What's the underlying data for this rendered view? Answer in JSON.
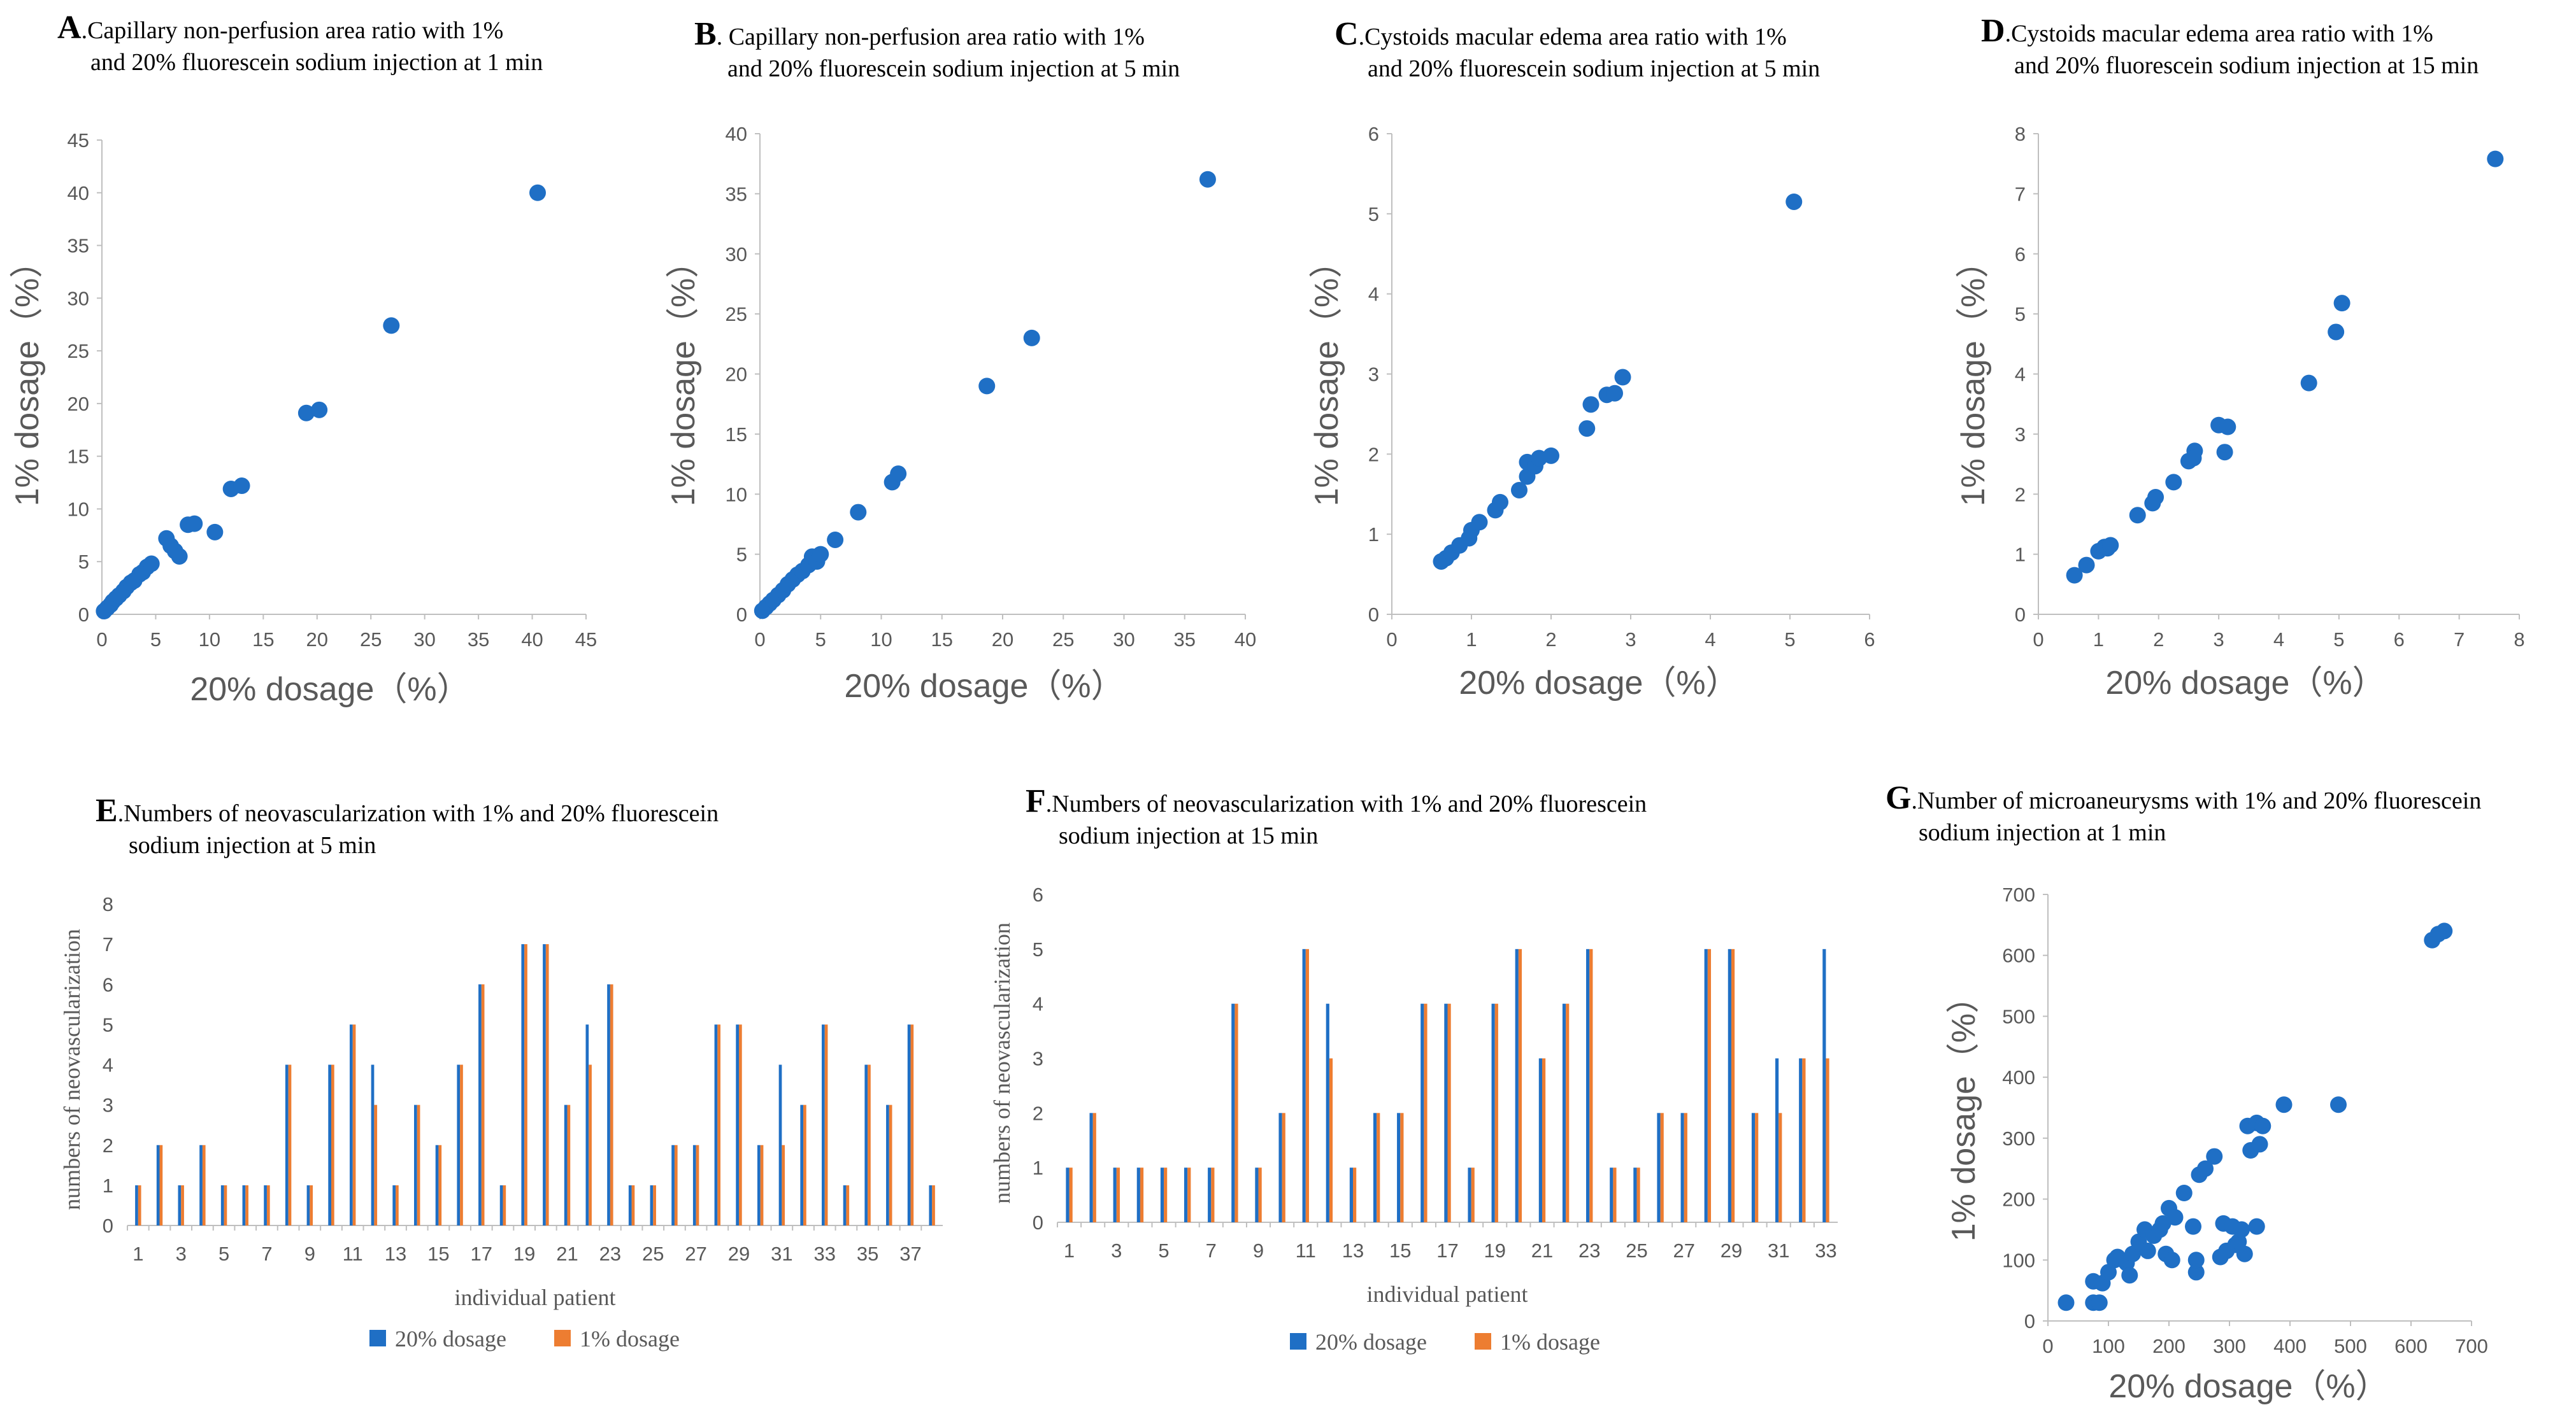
{
  "colors": {
    "blue": "#1f6fc5",
    "orange": "#ed7d31",
    "axis": "#bfbfbf",
    "tick_text": "#595959"
  },
  "chart_data": [
    {
      "id": "A",
      "type": "scatter",
      "letter": "A",
      "title_line1": ".Capillary non-perfusion area ratio with 1%",
      "title_line2": "and 20% fluorescein sodium injection at 1 min",
      "xlabel": "20% dosage（%）",
      "ylabel": "1% dosage（%）",
      "xlim": [
        0,
        45
      ],
      "ylim": [
        0,
        45
      ],
      "xticks": [
        0,
        5,
        10,
        15,
        20,
        25,
        30,
        35,
        40,
        45
      ],
      "yticks": [
        0,
        5,
        10,
        15,
        20,
        25,
        30,
        35,
        40,
        45
      ],
      "points": [
        [
          0.2,
          0.3
        ],
        [
          0.5,
          0.6
        ],
        [
          0.8,
          0.9
        ],
        [
          1.0,
          1.2
        ],
        [
          1.3,
          1.5
        ],
        [
          1.6,
          1.8
        ],
        [
          2.0,
          2.2
        ],
        [
          2.3,
          2.6
        ],
        [
          2.7,
          3.0
        ],
        [
          3.0,
          3.2
        ],
        [
          3.5,
          3.8
        ],
        [
          3.8,
          4.0
        ],
        [
          4.2,
          4.5
        ],
        [
          4.6,
          4.8
        ],
        [
          6.0,
          7.2
        ],
        [
          6.4,
          6.5
        ],
        [
          6.8,
          6.0
        ],
        [
          7.2,
          5.5
        ],
        [
          8.0,
          8.5
        ],
        [
          8.6,
          8.6
        ],
        [
          10.5,
          7.8
        ],
        [
          12.0,
          11.9
        ],
        [
          13.0,
          12.2
        ],
        [
          19.0,
          19.1
        ],
        [
          20.2,
          19.4
        ],
        [
          26.9,
          27.4
        ],
        [
          40.5,
          40.0
        ]
      ]
    },
    {
      "id": "B",
      "type": "scatter",
      "letter": "B",
      "title_line1": ". Capillary non-perfusion area ratio with 1%",
      "title_line2": "and 20% fluorescein sodium injection at 5 min",
      "xlabel": "20% dosage（%）",
      "ylabel": "1% dosage（%）",
      "xlim": [
        0,
        40
      ],
      "ylim": [
        0,
        40
      ],
      "xticks": [
        0,
        5,
        10,
        15,
        20,
        25,
        30,
        35,
        40
      ],
      "yticks": [
        0,
        5,
        10,
        15,
        20,
        25,
        30,
        35,
        40
      ],
      "points": [
        [
          0.2,
          0.3
        ],
        [
          0.5,
          0.6
        ],
        [
          0.8,
          0.9
        ],
        [
          1.1,
          1.2
        ],
        [
          1.5,
          1.6
        ],
        [
          1.9,
          2.0
        ],
        [
          2.3,
          2.5
        ],
        [
          2.7,
          2.9
        ],
        [
          3.1,
          3.3
        ],
        [
          3.5,
          3.6
        ],
        [
          4.0,
          4.1
        ],
        [
          4.3,
          4.8
        ],
        [
          4.7,
          4.4
        ],
        [
          5.0,
          5.0
        ],
        [
          6.2,
          6.2
        ],
        [
          8.1,
          8.5
        ],
        [
          10.9,
          11.0
        ],
        [
          11.4,
          11.7
        ],
        [
          18.7,
          19.0
        ],
        [
          22.4,
          23.0
        ],
        [
          36.9,
          36.2
        ]
      ]
    },
    {
      "id": "C",
      "type": "scatter",
      "letter": "C",
      "title_line1": ".Cystoids macular edema area ratio with 1%",
      "title_line2": "and 20% fluorescein sodium injection at 5 min",
      "xlabel": "20% dosage（%）",
      "ylabel": "1% dosage（%）",
      "xlim": [
        0,
        6
      ],
      "ylim": [
        0,
        6
      ],
      "xticks": [
        0,
        1,
        2,
        3,
        4,
        5,
        6
      ],
      "yticks": [
        0,
        1,
        2,
        3,
        4,
        5,
        6
      ],
      "points": [
        [
          0.62,
          0.66
        ],
        [
          0.68,
          0.7
        ],
        [
          0.75,
          0.77
        ],
        [
          0.85,
          0.86
        ],
        [
          0.97,
          0.95
        ],
        [
          1.0,
          1.05
        ],
        [
          1.1,
          1.15
        ],
        [
          1.3,
          1.3
        ],
        [
          1.36,
          1.4
        ],
        [
          1.6,
          1.55
        ],
        [
          1.7,
          1.72
        ],
        [
          1.7,
          1.9
        ],
        [
          1.8,
          1.85
        ],
        [
          1.85,
          1.95
        ],
        [
          2.0,
          1.98
        ],
        [
          2.45,
          2.32
        ],
        [
          2.5,
          2.62
        ],
        [
          2.7,
          2.74
        ],
        [
          2.8,
          2.76
        ],
        [
          2.9,
          2.96
        ],
        [
          5.05,
          5.15
        ]
      ]
    },
    {
      "id": "D",
      "type": "scatter",
      "letter": "D",
      "title_line1": ".Cystoids macular edema area ratio with 1%",
      "title_line2": "and 20% fluorescein sodium injection at 15 min",
      "xlabel": "20% dosage（%）",
      "ylabel": "1% dosage（%）",
      "xlim": [
        0,
        8
      ],
      "ylim": [
        0,
        8
      ],
      "xticks": [
        0,
        1,
        2,
        3,
        4,
        5,
        6,
        7,
        8
      ],
      "yticks": [
        0,
        1,
        2,
        3,
        4,
        5,
        6,
        7,
        8
      ],
      "points": [
        [
          0.6,
          0.65
        ],
        [
          0.8,
          0.82
        ],
        [
          1.0,
          1.05
        ],
        [
          1.1,
          1.12
        ],
        [
          1.15,
          1.1
        ],
        [
          1.2,
          1.15
        ],
        [
          1.65,
          1.65
        ],
        [
          1.9,
          1.85
        ],
        [
          1.95,
          1.95
        ],
        [
          2.25,
          2.2
        ],
        [
          2.5,
          2.55
        ],
        [
          2.6,
          2.72
        ],
        [
          2.58,
          2.6
        ],
        [
          3.0,
          3.15
        ],
        [
          3.1,
          2.7
        ],
        [
          3.15,
          3.12
        ],
        [
          4.5,
          3.85
        ],
        [
          4.95,
          4.7
        ],
        [
          5.05,
          5.18
        ],
        [
          7.6,
          7.58
        ]
      ]
    },
    {
      "id": "E",
      "type": "bar",
      "letter": "E",
      "title_line1": ".Numbers of neovascularization with 1% and 20% fluorescein",
      "title_line2": "sodium injection at 5 min",
      "xlabel": "individual patient",
      "ylabel": "numbers of neovascularization",
      "ylim": [
        0,
        8
      ],
      "yticks": [
        0,
        1,
        2,
        3,
        4,
        5,
        6,
        7,
        8
      ],
      "categories": [
        "1",
        "2",
        "3",
        "4",
        "5",
        "6",
        "7",
        "8",
        "9",
        "10",
        "11",
        "12",
        "13",
        "14",
        "15",
        "16",
        "17",
        "18",
        "19",
        "20",
        "21",
        "22",
        "23",
        "24",
        "25",
        "26",
        "27",
        "28",
        "29",
        "30",
        "31",
        "32",
        "33",
        "34",
        "35",
        "36",
        "37",
        "38"
      ],
      "tick_labels": [
        "1",
        "3",
        "5",
        "7",
        "9",
        "11",
        "13",
        "15",
        "17",
        "19",
        "21",
        "23",
        "25",
        "27",
        "29",
        "31",
        "33",
        "35",
        "37"
      ],
      "series": [
        {
          "name": "20% dosage",
          "values": [
            1,
            2,
            1,
            2,
            1,
            1,
            1,
            4,
            1,
            4,
            5,
            4,
            1,
            3,
            2,
            4,
            6,
            1,
            7,
            7,
            3,
            5,
            6,
            1,
            1,
            2,
            2,
            5,
            5,
            2,
            4,
            3,
            5,
            1,
            4,
            3,
            5,
            1
          ]
        },
        {
          "name": "1% dosage",
          "values": [
            1,
            2,
            1,
            2,
            1,
            1,
            1,
            4,
            1,
            4,
            5,
            3,
            1,
            3,
            2,
            4,
            6,
            1,
            7,
            7,
            3,
            4,
            6,
            1,
            1,
            2,
            2,
            5,
            5,
            2,
            2,
            3,
            5,
            1,
            4,
            3,
            5,
            1
          ]
        }
      ],
      "legend": [
        "20% dosage",
        "1% dosage"
      ]
    },
    {
      "id": "F",
      "type": "bar",
      "letter": "F",
      "title_line1": ".Numbers of neovascularization with 1% and 20% fluorescein",
      "title_line2": "sodium injection at 15 min",
      "xlabel": "individual patient",
      "ylabel": "numbers of neovascularization",
      "ylim": [
        0,
        6
      ],
      "yticks": [
        0,
        1,
        2,
        3,
        4,
        5,
        6
      ],
      "categories": [
        "1",
        "2",
        "3",
        "4",
        "5",
        "6",
        "7",
        "8",
        "9",
        "10",
        "11",
        "12",
        "13",
        "14",
        "15",
        "16",
        "17",
        "18",
        "19",
        "20",
        "21",
        "22",
        "23",
        "24",
        "25",
        "26",
        "27",
        "28",
        "29",
        "30",
        "31",
        "32",
        "33"
      ],
      "tick_labels": [
        "1",
        "3",
        "5",
        "7",
        "9",
        "11",
        "13",
        "15",
        "17",
        "19",
        "21",
        "23",
        "25",
        "27",
        "29",
        "31",
        "33"
      ],
      "series": [
        {
          "name": "20% dosage",
          "values": [
            1,
            2,
            1,
            1,
            1,
            1,
            1,
            4,
            1,
            2,
            5,
            4,
            1,
            2,
            2,
            4,
            4,
            1,
            4,
            5,
            3,
            4,
            5,
            1,
            1,
            2,
            2,
            5,
            5,
            2,
            3,
            3,
            5
          ]
        },
        {
          "name": "1% dosage",
          "values": [
            1,
            2,
            1,
            1,
            1,
            1,
            1,
            4,
            1,
            2,
            5,
            3,
            1,
            2,
            2,
            4,
            4,
            1,
            4,
            5,
            3,
            4,
            5,
            1,
            1,
            2,
            2,
            5,
            5,
            2,
            2,
            3,
            3
          ]
        }
      ],
      "legend": [
        "20% dosage",
        "1% dosage"
      ]
    },
    {
      "id": "G",
      "type": "scatter",
      "letter": "G",
      "title_line1": ".Number of microaneurysms with 1% and 20% fluorescein",
      "title_line2": "sodium injection at 1 min",
      "xlabel": "20% dosage（%）",
      "ylabel": "1% dosage（%）",
      "xlim": [
        0,
        700
      ],
      "ylim": [
        0,
        700
      ],
      "xticks": [
        0,
        100,
        200,
        300,
        400,
        500,
        600,
        700
      ],
      "yticks": [
        0,
        100,
        200,
        300,
        400,
        500,
        600,
        700
      ],
      "points": [
        [
          30,
          30
        ],
        [
          75,
          30
        ],
        [
          85,
          30
        ],
        [
          75,
          65
        ],
        [
          90,
          62
        ],
        [
          100,
          80
        ],
        [
          110,
          100
        ],
        [
          115,
          105
        ],
        [
          130,
          95
        ],
        [
          135,
          75
        ],
        [
          140,
          110
        ],
        [
          150,
          130
        ],
        [
          160,
          150
        ],
        [
          165,
          115
        ],
        [
          175,
          140
        ],
        [
          185,
          150
        ],
        [
          190,
          160
        ],
        [
          195,
          110
        ],
        [
          200,
          185
        ],
        [
          205,
          100
        ],
        [
          210,
          170
        ],
        [
          225,
          210
        ],
        [
          240,
          155
        ],
        [
          245,
          80
        ],
        [
          245,
          100
        ],
        [
          250,
          240
        ],
        [
          260,
          250
        ],
        [
          275,
          270
        ],
        [
          285,
          105
        ],
        [
          290,
          160
        ],
        [
          295,
          115
        ],
        [
          305,
          155
        ],
        [
          310,
          125
        ],
        [
          315,
          130
        ],
        [
          320,
          150
        ],
        [
          325,
          110
        ],
        [
          330,
          320
        ],
        [
          335,
          280
        ],
        [
          345,
          325
        ],
        [
          350,
          290
        ],
        [
          345,
          155
        ],
        [
          355,
          320
        ],
        [
          390,
          355
        ],
        [
          480,
          355
        ],
        [
          635,
          625
        ],
        [
          645,
          635
        ],
        [
          655,
          640
        ]
      ]
    }
  ]
}
